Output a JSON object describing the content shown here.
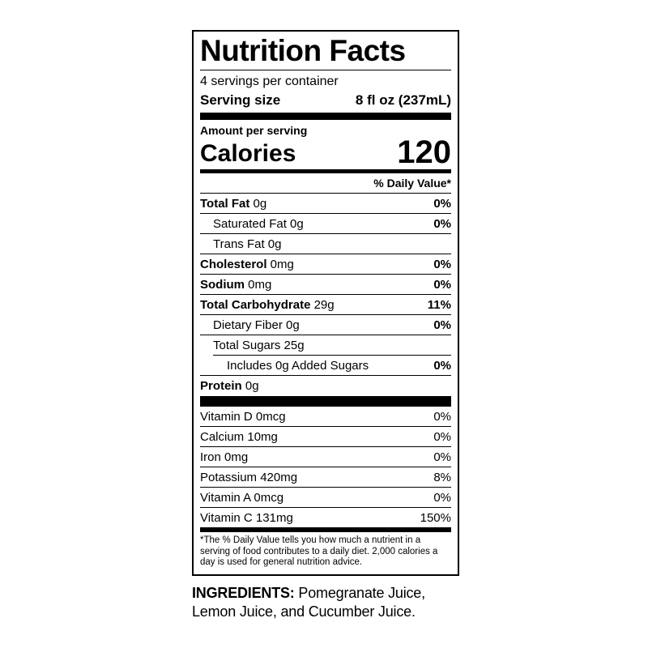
{
  "label": {
    "title": "Nutrition Facts",
    "servings_per_container": "4 servings per container",
    "serving_size_label": "Serving size",
    "serving_size_value": "8 fl oz (237mL)",
    "amount_per_serving": "Amount per serving",
    "calories_label": "Calories",
    "calories_value": "120",
    "daily_value_header": "% Daily Value*",
    "nutrients": [
      {
        "name": "Total Fat",
        "amount": "0g",
        "dv": "0%",
        "bold": true,
        "indent": 0
      },
      {
        "name": "Saturated Fat",
        "amount": "0g",
        "dv": "0%",
        "bold": false,
        "indent": 1
      },
      {
        "name": "Trans Fat",
        "amount": "0g",
        "dv": "",
        "bold": false,
        "indent": 1
      },
      {
        "name": "Cholesterol",
        "amount": "0mg",
        "dv": "0%",
        "bold": true,
        "indent": 0
      },
      {
        "name": "Sodium",
        "amount": "0mg",
        "dv": "0%",
        "bold": true,
        "indent": 0
      },
      {
        "name": "Total Carbohydrate",
        "amount": "29g",
        "dv": "11%",
        "bold": true,
        "indent": 0
      },
      {
        "name": "Dietary Fiber",
        "amount": "0g",
        "dv": "0%",
        "bold": false,
        "indent": 1
      },
      {
        "name": "Total Sugars",
        "amount": "25g",
        "dv": "",
        "bold": false,
        "indent": 1
      },
      {
        "name": "Includes 0g Added Sugars",
        "amount": "",
        "dv": "0%",
        "bold": false,
        "indent": 2
      },
      {
        "name": "Protein",
        "amount": "0g",
        "dv": "",
        "bold": true,
        "indent": 0
      }
    ],
    "vitamins": [
      {
        "name": "Vitamin D",
        "amount": "0mcg",
        "dv": "0%"
      },
      {
        "name": "Calcium",
        "amount": "10mg",
        "dv": "0%"
      },
      {
        "name": "Iron",
        "amount": "0mg",
        "dv": "0%"
      },
      {
        "name": "Potassium",
        "amount": "420mg",
        "dv": "8%"
      },
      {
        "name": "Vitamin A",
        "amount": "0mcg",
        "dv": "0%"
      },
      {
        "name": "Vitamin C",
        "amount": "131mg",
        "dv": "150%"
      }
    ],
    "footnote": "*The % Daily Value tells you how much a nutrient in a serving of food contributes to a daily diet. 2,000 calories a day is used for general nutrition advice."
  },
  "ingredients": {
    "label": "INGREDIENTS:",
    "text": " Pomegranate Juice, Lemon Juice, and Cucumber Juice."
  },
  "colors": {
    "text": "#000000",
    "background": "#ffffff"
  }
}
